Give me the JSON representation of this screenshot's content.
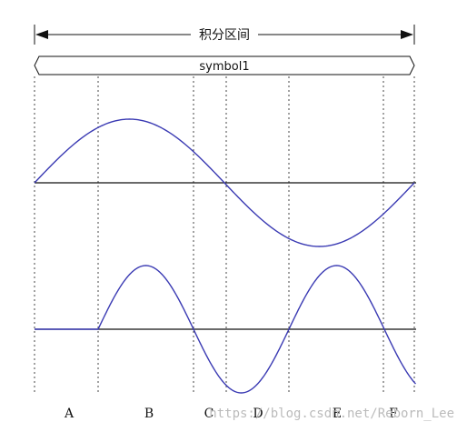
{
  "header": {
    "range_label": "积分区间",
    "symbol_label": "symbol1"
  },
  "segment_labels": [
    "A",
    "B",
    "C",
    "D",
    "E",
    "F"
  ],
  "watermark": "https://blog.csdn.net/Reborn_Lee",
  "colors": {
    "wave": "#3a3ab3",
    "axis": "#111111",
    "divider": "#444444",
    "background": "#ffffff"
  }
}
